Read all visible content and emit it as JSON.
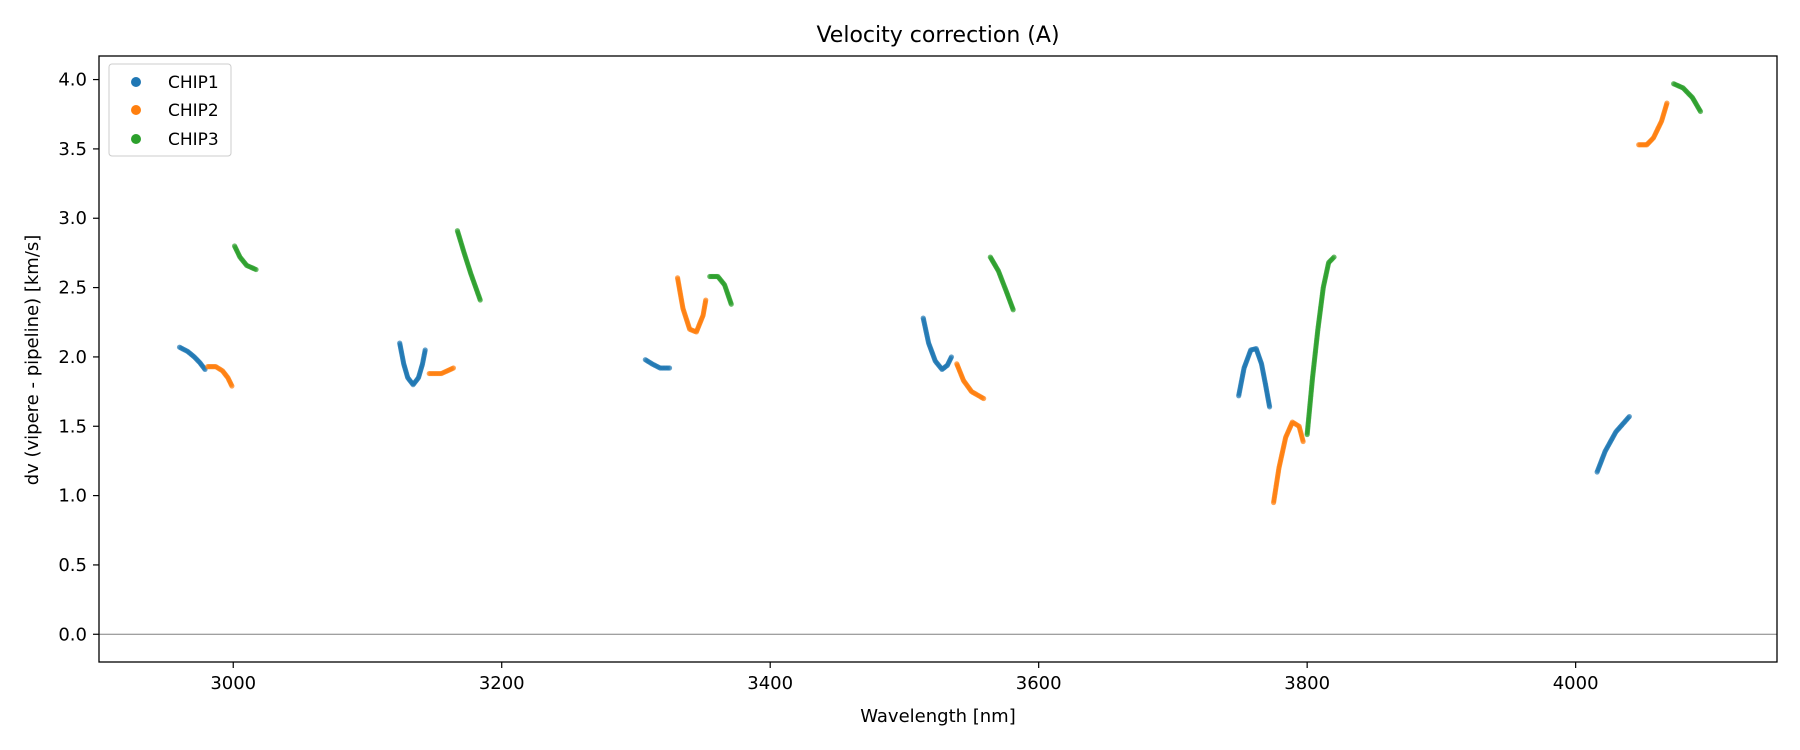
{
  "chart_data": {
    "type": "scatter",
    "title": "Velocity correction (A)",
    "xlabel": "Wavelength [nm]",
    "ylabel": "dv (vipere - pipeline) [km/s]",
    "xlim": [
      2900,
      4150
    ],
    "ylim": [
      -0.2,
      4.17
    ],
    "x_ticks": [
      3000,
      3200,
      3400,
      3600,
      3800,
      4000
    ],
    "y_ticks": [
      0.0,
      0.5,
      1.0,
      1.5,
      2.0,
      2.5,
      3.0,
      3.5,
      4.0
    ],
    "x_tick_labels": [
      "3000",
      "3200",
      "3400",
      "3600",
      "3800",
      "4000"
    ],
    "y_tick_labels": [
      "0.0",
      "0.5",
      "1.0",
      "1.5",
      "2.0",
      "2.5",
      "3.0",
      "3.5",
      "4.0"
    ],
    "zero_line": 0.0,
    "grid": false,
    "legend_position": "top-left",
    "legend": [
      "CHIP1",
      "CHIP2",
      "CHIP3"
    ],
    "colors": {
      "CHIP1": "#1f77b4",
      "CHIP2": "#ff7f0e",
      "CHIP3": "#2ca02c",
      "zero_line": "#808080"
    },
    "series": [
      {
        "name": "CHIP1",
        "segments": [
          [
            [
              2960,
              2.07
            ],
            [
              2966,
              2.04
            ],
            [
              2971,
              2.0
            ],
            [
              2975,
              1.96
            ],
            [
              2979,
              1.91
            ]
          ],
          [
            [
              3124,
              2.1
            ],
            [
              3127,
              1.95
            ],
            [
              3130,
              1.85
            ],
            [
              3134,
              1.8
            ],
            [
              3138,
              1.85
            ],
            [
              3141,
              1.95
            ],
            [
              3143,
              2.05
            ]
          ],
          [
            [
              3307,
              1.98
            ],
            [
              3312,
              1.95
            ],
            [
              3318,
              1.92
            ],
            [
              3325,
              1.92
            ]
          ],
          [
            [
              3514,
              2.28
            ],
            [
              3518,
              2.1
            ],
            [
              3523,
              1.97
            ],
            [
              3528,
              1.91
            ],
            [
              3532,
              1.94
            ],
            [
              3535,
              2.0
            ]
          ],
          [
            [
              3749,
              1.72
            ],
            [
              3753,
              1.92
            ],
            [
              3758,
              2.05
            ],
            [
              3762,
              2.06
            ],
            [
              3766,
              1.95
            ],
            [
              3769,
              1.8
            ],
            [
              3772,
              1.64
            ]
          ],
          [
            [
              4016,
              1.17
            ],
            [
              4022,
              1.32
            ],
            [
              4030,
              1.46
            ],
            [
              4040,
              1.57
            ]
          ]
        ]
      },
      {
        "name": "CHIP2",
        "segments": [
          [
            [
              2981,
              1.93
            ],
            [
              2987,
              1.93
            ],
            [
              2992,
              1.9
            ],
            [
              2996,
              1.85
            ],
            [
              2999,
              1.79
            ]
          ],
          [
            [
              3146,
              1.88
            ],
            [
              3155,
              1.88
            ],
            [
              3164,
              1.92
            ]
          ],
          [
            [
              3331,
              2.57
            ],
            [
              3335,
              2.35
            ],
            [
              3340,
              2.2
            ],
            [
              3345,
              2.18
            ],
            [
              3350,
              2.3
            ],
            [
              3352,
              2.41
            ]
          ],
          [
            [
              3539,
              1.95
            ],
            [
              3544,
              1.83
            ],
            [
              3550,
              1.75
            ],
            [
              3559,
              1.7
            ]
          ],
          [
            [
              3775,
              0.95
            ],
            [
              3779,
              1.2
            ],
            [
              3784,
              1.42
            ],
            [
              3789,
              1.53
            ],
            [
              3794,
              1.5
            ],
            [
              3797,
              1.39
            ]
          ],
          [
            [
              4047,
              3.53
            ],
            [
              4053,
              3.53
            ],
            [
              4058,
              3.58
            ],
            [
              4064,
              3.7
            ],
            [
              4068,
              3.83
            ]
          ]
        ]
      },
      {
        "name": "CHIP3",
        "segments": [
          [
            [
              3001,
              2.8
            ],
            [
              3005,
              2.72
            ],
            [
              3010,
              2.66
            ],
            [
              3017,
              2.63
            ]
          ],
          [
            [
              3167,
              2.91
            ],
            [
              3172,
              2.75
            ],
            [
              3177,
              2.6
            ],
            [
              3184,
              2.41
            ]
          ],
          [
            [
              3355,
              2.58
            ],
            [
              3361,
              2.58
            ],
            [
              3366,
              2.52
            ],
            [
              3371,
              2.38
            ]
          ],
          [
            [
              3564,
              2.72
            ],
            [
              3570,
              2.62
            ],
            [
              3576,
              2.47
            ],
            [
              3581,
              2.34
            ]
          ],
          [
            [
              3800,
              1.44
            ],
            [
              3804,
              1.85
            ],
            [
              3808,
              2.2
            ],
            [
              3812,
              2.5
            ],
            [
              3816,
              2.68
            ],
            [
              3820,
              2.72
            ]
          ],
          [
            [
              4073,
              3.97
            ],
            [
              4080,
              3.94
            ],
            [
              4087,
              3.87
            ],
            [
              4093,
              3.77
            ]
          ]
        ]
      }
    ]
  }
}
